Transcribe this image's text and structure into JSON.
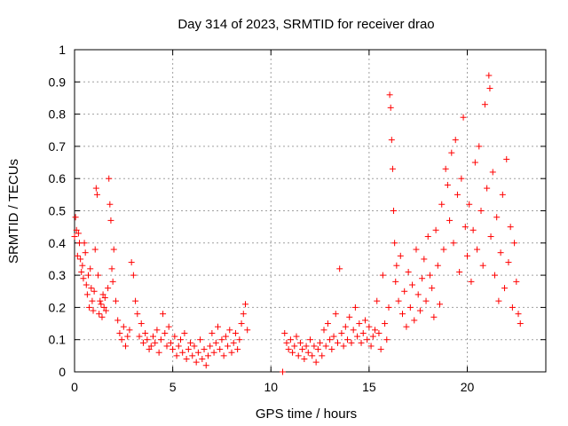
{
  "chart_data": {
    "type": "scatter",
    "title": "Day 314 of 2023, SRMTID for receiver drao",
    "xlabel": "GPS time / hours",
    "ylabel": "SRMTID / TECUs",
    "xlim": [
      0,
      24
    ],
    "ylim": [
      0,
      1
    ],
    "x_ticks": [
      0,
      5,
      10,
      15,
      20
    ],
    "y_ticks": [
      0,
      0.1,
      0.2,
      0.3,
      0.4,
      0.5,
      0.6,
      0.7,
      0.8,
      0.9,
      1
    ],
    "x_tick_labels": [
      "0",
      "5",
      "10",
      "15",
      "20"
    ],
    "y_tick_labels": [
      "0",
      "0.1",
      "0.2",
      "0.3",
      "0.4",
      "0.5",
      "0.6",
      "0.7",
      "0.8",
      "0.9",
      "1"
    ],
    "grid": true,
    "marker": "plus",
    "color": "#ff0000",
    "series": [
      {
        "name": "drao",
        "points": [
          [
            0.0,
            0.42
          ],
          [
            0.05,
            0.48
          ],
          [
            0.1,
            0.44
          ],
          [
            0.15,
            0.36
          ],
          [
            0.2,
            0.43
          ],
          [
            0.25,
            0.4
          ],
          [
            0.3,
            0.35
          ],
          [
            0.35,
            0.31
          ],
          [
            0.4,
            0.33
          ],
          [
            0.45,
            0.29
          ],
          [
            0.5,
            0.4
          ],
          [
            0.55,
            0.37
          ],
          [
            0.6,
            0.27
          ],
          [
            0.65,
            0.24
          ],
          [
            0.7,
            0.3
          ],
          [
            0.75,
            0.2
          ],
          [
            0.8,
            0.32
          ],
          [
            0.85,
            0.26
          ],
          [
            0.9,
            0.22
          ],
          [
            0.95,
            0.19
          ],
          [
            1.0,
            0.25
          ],
          [
            1.05,
            0.38
          ],
          [
            1.1,
            0.57
          ],
          [
            1.15,
            0.55
          ],
          [
            1.2,
            0.3
          ],
          [
            1.25,
            0.18
          ],
          [
            1.3,
            0.22
          ],
          [
            1.35,
            0.21
          ],
          [
            1.4,
            0.17
          ],
          [
            1.45,
            0.24
          ],
          [
            1.5,
            0.2
          ],
          [
            1.55,
            0.23
          ],
          [
            1.6,
            0.19
          ],
          [
            1.7,
            0.26
          ],
          [
            1.75,
            0.6
          ],
          [
            1.8,
            0.52
          ],
          [
            1.85,
            0.47
          ],
          [
            1.9,
            0.32
          ],
          [
            1.95,
            0.28
          ],
          [
            2.0,
            0.38
          ],
          [
            2.1,
            0.22
          ],
          [
            2.2,
            0.16
          ],
          [
            2.3,
            0.12
          ],
          [
            2.4,
            0.1
          ],
          [
            2.5,
            0.14
          ],
          [
            2.6,
            0.08
          ],
          [
            2.7,
            0.11
          ],
          [
            2.8,
            0.13
          ],
          [
            2.9,
            0.34
          ],
          [
            3.0,
            0.3
          ],
          [
            3.1,
            0.22
          ],
          [
            3.2,
            0.18
          ],
          [
            3.3,
            0.11
          ],
          [
            3.4,
            0.15
          ],
          [
            3.5,
            0.09
          ],
          [
            3.6,
            0.12
          ],
          [
            3.7,
            0.1
          ],
          [
            3.8,
            0.07
          ],
          [
            3.9,
            0.08
          ],
          [
            4.0,
            0.11
          ],
          [
            4.1,
            0.09
          ],
          [
            4.2,
            0.13
          ],
          [
            4.3,
            0.06
          ],
          [
            4.4,
            0.1
          ],
          [
            4.5,
            0.18
          ],
          [
            4.6,
            0.12
          ],
          [
            4.7,
            0.08
          ],
          [
            4.8,
            0.14
          ],
          [
            4.9,
            0.09
          ],
          [
            5.0,
            0.07
          ],
          [
            5.1,
            0.11
          ],
          [
            5.2,
            0.05
          ],
          [
            5.3,
            0.08
          ],
          [
            5.4,
            0.1
          ],
          [
            5.5,
            0.06
          ],
          [
            5.6,
            0.12
          ],
          [
            5.7,
            0.04
          ],
          [
            5.8,
            0.07
          ],
          [
            5.9,
            0.09
          ],
          [
            6.0,
            0.05
          ],
          [
            6.1,
            0.08
          ],
          [
            6.2,
            0.03
          ],
          [
            6.3,
            0.06
          ],
          [
            6.4,
            0.1
          ],
          [
            6.5,
            0.04
          ],
          [
            6.6,
            0.07
          ],
          [
            6.7,
            0.02
          ],
          [
            6.8,
            0.05
          ],
          [
            6.9,
            0.08
          ],
          [
            7.0,
            0.12
          ],
          [
            7.1,
            0.06
          ],
          [
            7.2,
            0.09
          ],
          [
            7.3,
            0.14
          ],
          [
            7.4,
            0.07
          ],
          [
            7.5,
            0.1
          ],
          [
            7.6,
            0.05
          ],
          [
            7.7,
            0.11
          ],
          [
            7.8,
            0.08
          ],
          [
            7.9,
            0.13
          ],
          [
            8.0,
            0.06
          ],
          [
            8.1,
            0.09
          ],
          [
            8.2,
            0.12
          ],
          [
            8.3,
            0.07
          ],
          [
            8.4,
            0.1
          ],
          [
            8.5,
            0.15
          ],
          [
            8.6,
            0.18
          ],
          [
            8.7,
            0.21
          ],
          [
            8.8,
            0.13
          ],
          [
            10.6,
            0.0
          ],
          [
            10.7,
            0.12
          ],
          [
            10.8,
            0.09
          ],
          [
            10.9,
            0.07
          ],
          [
            11.0,
            0.1
          ],
          [
            11.1,
            0.06
          ],
          [
            11.2,
            0.08
          ],
          [
            11.3,
            0.11
          ],
          [
            11.4,
            0.05
          ],
          [
            11.5,
            0.09
          ],
          [
            11.6,
            0.07
          ],
          [
            11.7,
            0.04
          ],
          [
            11.8,
            0.08
          ],
          [
            11.9,
            0.06
          ],
          [
            12.0,
            0.1
          ],
          [
            12.1,
            0.05
          ],
          [
            12.2,
            0.08
          ],
          [
            12.3,
            0.03
          ],
          [
            12.4,
            0.07
          ],
          [
            12.5,
            0.09
          ],
          [
            12.6,
            0.05
          ],
          [
            12.7,
            0.13
          ],
          [
            12.8,
            0.08
          ],
          [
            12.9,
            0.15
          ],
          [
            13.0,
            0.1
          ],
          [
            13.1,
            0.07
          ],
          [
            13.2,
            0.11
          ],
          [
            13.3,
            0.18
          ],
          [
            13.4,
            0.09
          ],
          [
            13.5,
            0.32
          ],
          [
            13.6,
            0.12
          ],
          [
            13.7,
            0.08
          ],
          [
            13.8,
            0.14
          ],
          [
            13.9,
            0.1
          ],
          [
            14.0,
            0.17
          ],
          [
            14.1,
            0.09
          ],
          [
            14.2,
            0.13
          ],
          [
            14.3,
            0.2
          ],
          [
            14.4,
            0.11
          ],
          [
            14.5,
            0.15
          ],
          [
            14.6,
            0.09
          ],
          [
            14.7,
            0.12
          ],
          [
            14.8,
            0.16
          ],
          [
            14.9,
            0.1
          ],
          [
            15.0,
            0.14
          ],
          [
            15.1,
            0.08
          ],
          [
            15.2,
            0.11
          ],
          [
            15.3,
            0.13
          ],
          [
            15.4,
            0.22
          ],
          [
            15.5,
            0.12
          ],
          [
            15.6,
            0.07
          ],
          [
            15.7,
            0.3
          ],
          [
            15.8,
            0.15
          ],
          [
            15.9,
            0.1
          ],
          [
            16.0,
            0.2
          ],
          [
            16.05,
            0.86
          ],
          [
            16.1,
            0.82
          ],
          [
            16.15,
            0.72
          ],
          [
            16.2,
            0.63
          ],
          [
            16.25,
            0.5
          ],
          [
            16.3,
            0.4
          ],
          [
            16.35,
            0.28
          ],
          [
            16.4,
            0.33
          ],
          [
            16.5,
            0.22
          ],
          [
            16.6,
            0.36
          ],
          [
            16.7,
            0.18
          ],
          [
            16.8,
            0.25
          ],
          [
            16.9,
            0.14
          ],
          [
            17.0,
            0.31
          ],
          [
            17.1,
            0.2
          ],
          [
            17.2,
            0.27
          ],
          [
            17.3,
            0.16
          ],
          [
            17.4,
            0.38
          ],
          [
            17.5,
            0.24
          ],
          [
            17.6,
            0.19
          ],
          [
            17.7,
            0.29
          ],
          [
            17.8,
            0.35
          ],
          [
            17.9,
            0.22
          ],
          [
            18.0,
            0.42
          ],
          [
            18.1,
            0.3
          ],
          [
            18.2,
            0.26
          ],
          [
            18.3,
            0.17
          ],
          [
            18.4,
            0.44
          ],
          [
            18.5,
            0.33
          ],
          [
            18.6,
            0.21
          ],
          [
            18.7,
            0.52
          ],
          [
            18.8,
            0.38
          ],
          [
            18.9,
            0.63
          ],
          [
            19.0,
            0.58
          ],
          [
            19.1,
            0.47
          ],
          [
            19.2,
            0.68
          ],
          [
            19.3,
            0.4
          ],
          [
            19.4,
            0.72
          ],
          [
            19.5,
            0.55
          ],
          [
            19.6,
            0.31
          ],
          [
            19.7,
            0.6
          ],
          [
            19.8,
            0.79
          ],
          [
            19.9,
            0.45
          ],
          [
            20.0,
            0.36
          ],
          [
            20.1,
            0.52
          ],
          [
            20.2,
            0.28
          ],
          [
            20.3,
            0.44
          ],
          [
            20.4,
            0.65
          ],
          [
            20.5,
            0.38
          ],
          [
            20.6,
            0.7
          ],
          [
            20.7,
            0.5
          ],
          [
            20.8,
            0.33
          ],
          [
            20.9,
            0.83
          ],
          [
            21.0,
            0.57
          ],
          [
            21.1,
            0.92
          ],
          [
            21.15,
            0.88
          ],
          [
            21.2,
            0.42
          ],
          [
            21.3,
            0.62
          ],
          [
            21.4,
            0.3
          ],
          [
            21.5,
            0.48
          ],
          [
            21.6,
            0.22
          ],
          [
            21.7,
            0.37
          ],
          [
            21.8,
            0.55
          ],
          [
            21.9,
            0.26
          ],
          [
            22.0,
            0.66
          ],
          [
            22.1,
            0.34
          ],
          [
            22.2,
            0.45
          ],
          [
            22.3,
            0.2
          ],
          [
            22.4,
            0.4
          ],
          [
            22.5,
            0.28
          ],
          [
            22.6,
            0.18
          ],
          [
            22.7,
            0.15
          ]
        ]
      }
    ]
  }
}
